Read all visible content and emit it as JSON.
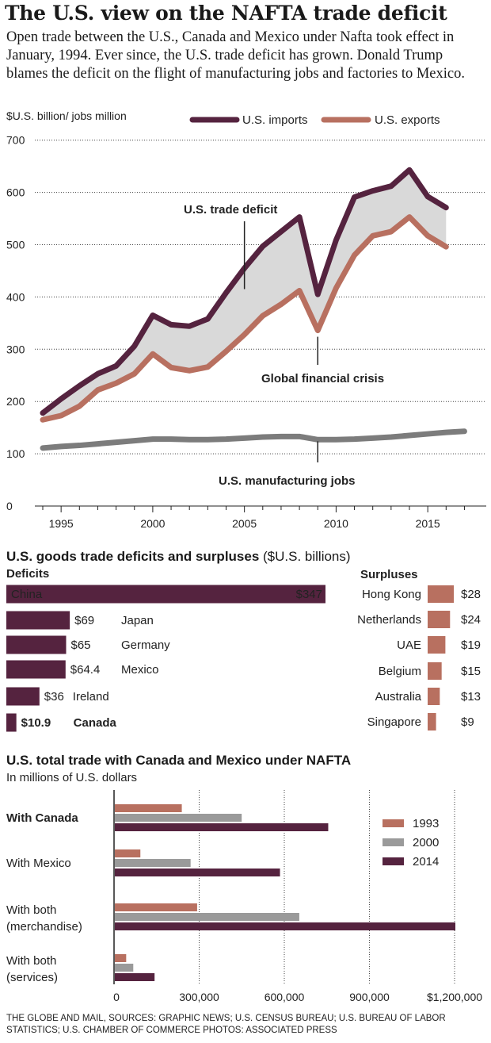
{
  "headline": "The U.S. view on the NAFTA trade deficit",
  "intro": "Open trade between the U.S., Canada and Mexico under Nafta took effect in January, 1994. Ever since, the U.S. trade deficit has grown. Donald Trump blames the deficit on the flight of manufacturing jobs and factories to Mexico.",
  "credits": "THE GLOBE AND MAIL,  SOURCES: GRAPHIC NEWS; U.S. CENSUS BUREAU; U.S. BUREAU OF LABOR STATISTICS; U.S. CHAMBER OF COMMERCE  PHOTOS: ASSOCIATED PRESS",
  "colors": {
    "imports": "#55233f",
    "exports": "#b87060",
    "jobs": "#7c7c7c",
    "gap": "#d9d9d9",
    "y2000": "#9a9a9a"
  },
  "chart_data": [
    {
      "type": "line",
      "ylabel": "$U.S. billion/ jobs million",
      "ylim": [
        0,
        700
      ],
      "yticks": [
        0,
        100,
        200,
        300,
        400,
        500,
        600,
        700
      ],
      "xlim": [
        1994,
        2017
      ],
      "xticks": [
        1995,
        2000,
        2005,
        2010,
        2015
      ],
      "x": [
        1994,
        1995,
        1996,
        1997,
        1998,
        1999,
        2000,
        2001,
        2002,
        2003,
        2004,
        2005,
        2006,
        2007,
        2008,
        2009,
        2010,
        2011,
        2012,
        2013,
        2014,
        2015,
        2016
      ],
      "series": [
        {
          "name": "U.S. imports",
          "values": [
            178,
            205,
            230,
            253,
            268,
            306,
            365,
            347,
            344,
            358,
            408,
            455,
            497,
            525,
            553,
            405,
            509,
            591,
            603,
            612,
            643,
            592,
            571
          ]
        },
        {
          "name": "U.S. exports",
          "values": [
            165,
            173,
            191,
            222,
            235,
            253,
            291,
            265,
            259,
            266,
            296,
            328,
            364,
            386,
            412,
            336,
            417,
            480,
            517,
            525,
            553,
            517,
            496
          ]
        },
        {
          "name": "U.S. manufacturing jobs",
          "x": [
            1994,
            1995,
            1996,
            1997,
            1998,
            1999,
            2000,
            2001,
            2002,
            2003,
            2004,
            2005,
            2006,
            2007,
            2008,
            2009,
            2010,
            2011,
            2012,
            2013,
            2014,
            2015,
            2016,
            2017
          ],
          "values": [
            111,
            114,
            116,
            119,
            122,
            125,
            128,
            128,
            127,
            127,
            128,
            130,
            132,
            133,
            133,
            127,
            127,
            128,
            130,
            132,
            135,
            138,
            141,
            143
          ]
        }
      ],
      "legend": [
        "U.S. imports",
        "U.S. exports"
      ],
      "annotations": [
        {
          "text": "U.S. trade deficit",
          "x": 2005,
          "y": 415
        },
        {
          "text": "Global financial crisis",
          "x": 2009,
          "y": 336
        },
        {
          "text": "U.S. manufacturing jobs",
          "x": 2009,
          "y": 133
        }
      ]
    },
    {
      "type": "bar",
      "title": "U.S. goods trade deficits and surpluses",
      "unit": "($U.S. billions)",
      "groups": [
        {
          "name": "Deficits",
          "categories": [
            "China",
            "Japan",
            "Germany",
            "Mexico",
            "Ireland",
            "Canada"
          ],
          "values": [
            347,
            69,
            65,
            64.4,
            36,
            10.9
          ],
          "labels": [
            "$347",
            "$69",
            "$65",
            "$64.4",
            "$36",
            "$10.9"
          ]
        },
        {
          "name": "Surpluses",
          "categories": [
            "Hong Kong",
            "Netherlands",
            "UAE",
            "Belgium",
            "Australia",
            "Singapore"
          ],
          "values": [
            28,
            24,
            19,
            15,
            13,
            9
          ],
          "labels": [
            "$28",
            "$24",
            "$19",
            "$15",
            "$13",
            "$9"
          ]
        }
      ]
    },
    {
      "type": "bar",
      "title": "U.S. total trade with Canada and Mexico under NAFTA",
      "subtitle": "In millions of U.S. dollars",
      "categories": [
        "With Canada",
        "With Mexico",
        "With both\n(merchandise)",
        "With both\n(services)"
      ],
      "series": [
        {
          "name": "1993",
          "values": [
            236000,
            90000,
            290000,
            40000
          ]
        },
        {
          "name": "2000",
          "values": [
            447000,
            267000,
            650000,
            65000
          ]
        },
        {
          "name": "2014",
          "values": [
            752000,
            582000,
            1200000,
            140000
          ]
        }
      ],
      "xlim": [
        0,
        1300000
      ],
      "xticks": [
        0,
        300000,
        600000,
        900000,
        1200000
      ],
      "xtick_labels": [
        "0",
        "300,000",
        "600,000",
        "900,000",
        "$1,200,000"
      ]
    }
  ]
}
